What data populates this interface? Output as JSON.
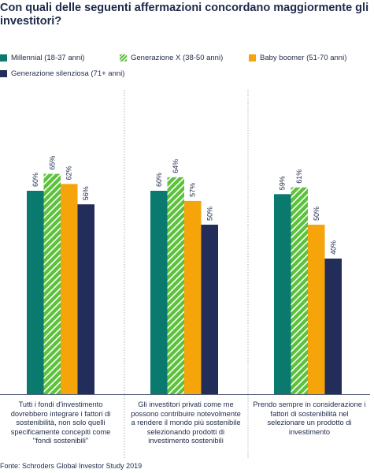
{
  "title": "Con quali delle seguenti affermazioni concordano maggiormente gli investitori?",
  "legend": [
    {
      "label": "Millennial (18-37 anni)",
      "color": "#0a7a6e",
      "pattern": "solid"
    },
    {
      "label": "Generazione X (38-50 anni)",
      "color": "#5cc23c",
      "pattern": "hatched"
    },
    {
      "label": "Baby boomer (51-70 anni)",
      "color": "#f5a40a",
      "pattern": "solid"
    },
    {
      "label": "Generazione silenziosa (71+ anni)",
      "color": "#232d5a",
      "pattern": "solid"
    }
  ],
  "chart_data": {
    "type": "bar",
    "categories": [
      "Tutti i fondi d'investimento dovrebbero integrare i fattori di sostenibilità, non solo quelli specificamente concepiti come \"fondi sostenibili\"",
      "Gli investitori privati come me possono contribuire notevolmente a rendere il mondo più sostenibile selezionando prodotti di investimento sostenibili",
      "Prendo sempre in considerazione i fattori di sostenibilità nel selezionare un prodotto di investimento"
    ],
    "series": [
      {
        "name": "Millennial (18-37 anni)",
        "values": [
          60,
          60,
          59
        ]
      },
      {
        "name": "Generazione X (38-50 anni)",
        "values": [
          65,
          64,
          61
        ]
      },
      {
        "name": "Baby boomer (51-70 anni)",
        "values": [
          62,
          57,
          50
        ]
      },
      {
        "name": "Generazione silenziosa (71+ anni)",
        "values": [
          56,
          50,
          40
        ]
      }
    ],
    "data_labels": [
      [
        "60%",
        "65%",
        "62%",
        "56%"
      ],
      [
        "60%",
        "64%",
        "57%",
        "50%"
      ],
      [
        "59%",
        "61%",
        "50%",
        "40%"
      ]
    ],
    "unit": "%",
    "ylim": [
      0,
      100
    ],
    "grid": false,
    "legend_position": "top-left"
  },
  "captions": [
    "Tutti i fondi d'investimento dovrebbero integrare i fattori di sostenibilità, non solo quelli specificamente concepiti come \"fondi sostenibili\"",
    "Gli investitori privati come me possono contribuire notevolmente a rendere il mondo più sostenibile selezionando prodotti di investimento sostenibili",
    "Prendo sempre in considerazione i fattori di sostenibilità nel selezionare un prodotto di investimento"
  ],
  "source": "Fonte: Schroders Global Investor Study 2019"
}
